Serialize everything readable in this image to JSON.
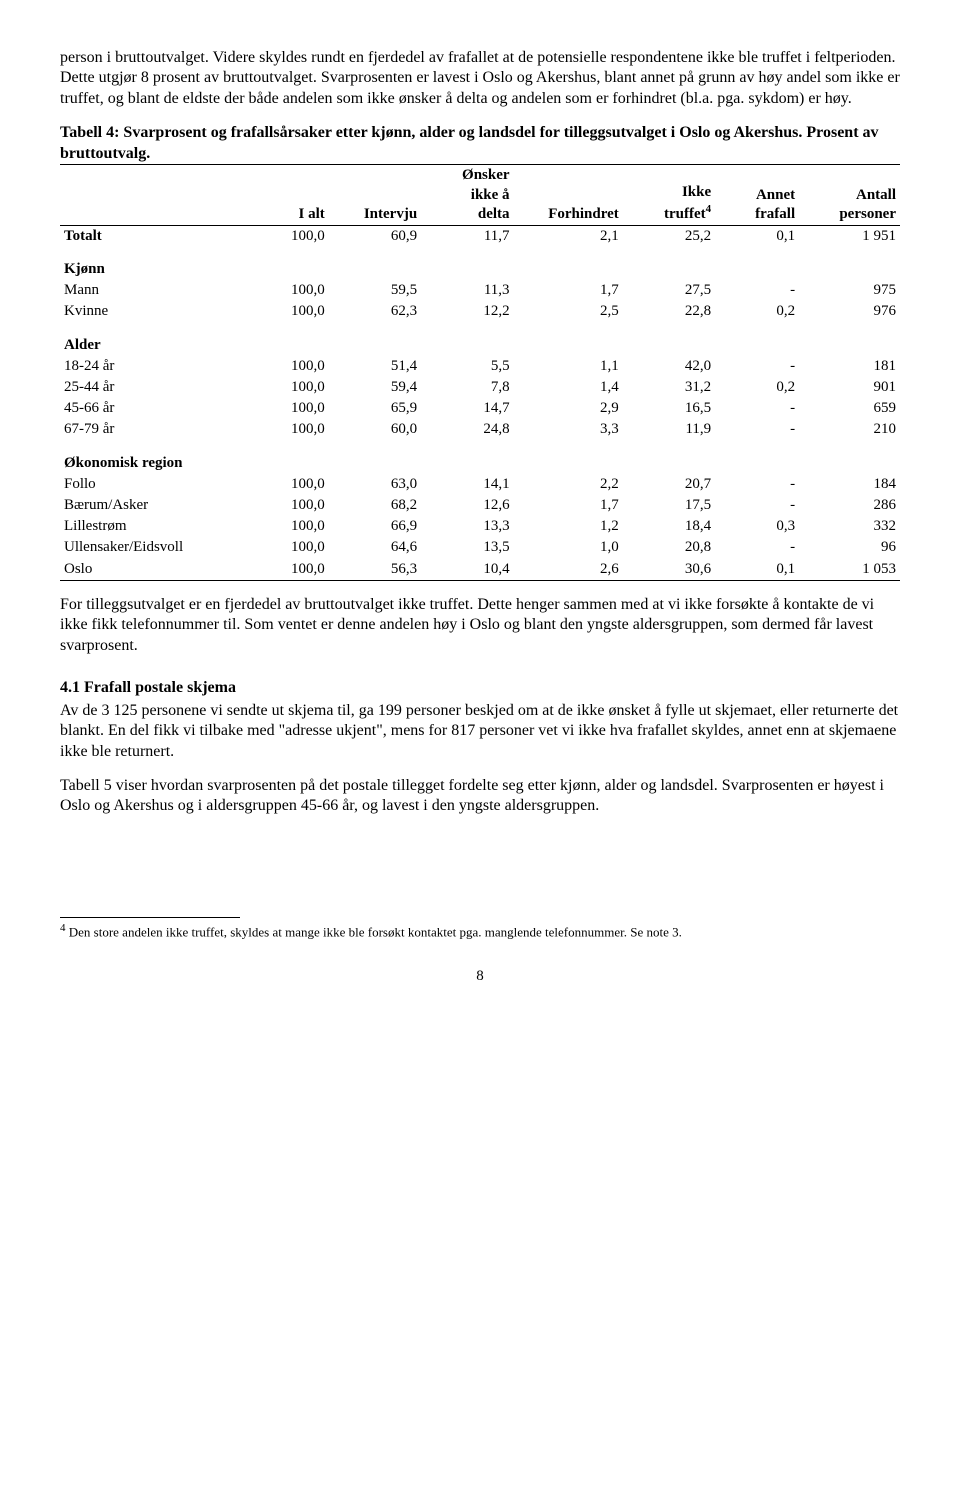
{
  "para1": "person i bruttoutvalget. Videre skyldes rundt en fjerdedel av frafallet at de potensielle respondentene ikke ble truffet i feltperioden. Dette utgjør 8 prosent av bruttoutvalget. Svarprosenten er lavest i Oslo og Akershus, blant annet på grunn av høy andel som ikke er truffet, og blant de eldste der både andelen som ikke ønsker å delta og andelen som er forhindret (bl.a. pga. sykdom) er høy.",
  "table4": {
    "title": "Tabell 4: Svarprosent og frafallsårsaker etter kjønn, alder og landsdel for tilleggsutvalget i Oslo og Akershus. Prosent av bruttoutvalg.",
    "headers": [
      "",
      "I alt",
      "Intervju",
      "Ønsker ikke å delta",
      "Forhindret",
      "Ikke truffet",
      "Annet frafall",
      "Antall personer"
    ],
    "footnote_marker": "4",
    "groups": [
      {
        "rows": [
          [
            "Totalt",
            "100,0",
            "60,9",
            "11,7",
            "2,1",
            "25,2",
            "0,1",
            "1 951"
          ]
        ]
      },
      {
        "label": "Kjønn",
        "rows": [
          [
            "Mann",
            "100,0",
            "59,5",
            "11,3",
            "1,7",
            "27,5",
            "-",
            "975"
          ],
          [
            "Kvinne",
            "100,0",
            "62,3",
            "12,2",
            "2,5",
            "22,8",
            "0,2",
            "976"
          ]
        ]
      },
      {
        "label": "Alder",
        "rows": [
          [
            "18-24 år",
            "100,0",
            "51,4",
            "5,5",
            "1,1",
            "42,0",
            "-",
            "181"
          ],
          [
            "25-44 år",
            "100,0",
            "59,4",
            "7,8",
            "1,4",
            "31,2",
            "0,2",
            "901"
          ],
          [
            "45-66 år",
            "100,0",
            "65,9",
            "14,7",
            "2,9",
            "16,5",
            "-",
            "659"
          ],
          [
            "67-79 år",
            "100,0",
            "60,0",
            "24,8",
            "3,3",
            "11,9",
            "-",
            "210"
          ]
        ]
      },
      {
        "label": "Økonomisk region",
        "rows": [
          [
            "Follo",
            "100,0",
            "63,0",
            "14,1",
            "2,2",
            "20,7",
            "-",
            "184"
          ],
          [
            "Bærum/Asker",
            "100,0",
            "68,2",
            "12,6",
            "1,7",
            "17,5",
            "-",
            "286"
          ],
          [
            "Lillestrøm",
            "100,0",
            "66,9",
            "13,3",
            "1,2",
            "18,4",
            "0,3",
            "332"
          ],
          [
            "Ullensaker/Eidsvoll",
            "100,0",
            "64,6",
            "13,5",
            "1,0",
            "20,8",
            "-",
            "96"
          ],
          [
            "Oslo",
            "100,0",
            "56,3",
            "10,4",
            "2,6",
            "30,6",
            "0,1",
            "1 053"
          ]
        ]
      }
    ]
  },
  "para2": "For tilleggsutvalget er en fjerdedel av bruttoutvalget ikke truffet. Dette henger sammen med at vi ikke forsøkte å kontakte de vi ikke fikk telefonnummer til. Som ventet er denne andelen høy i Oslo og blant den yngste aldersgruppen, som dermed får lavest svarprosent.",
  "section41": {
    "heading": "4.1   Frafall postale skjema",
    "para1": "Av de 3 125 personene vi sendte ut skjema til, ga 199 personer beskjed om at de ikke ønsket å fylle ut skjemaet, eller returnerte det blankt. En del fikk vi tilbake med \"adresse ukjent\", mens for 817 personer vet vi ikke hva frafallet skyldes, annet enn at skjemaene ikke ble returnert.",
    "para2": "Tabell 5 viser hvordan svarprosenten på det postale tillegget fordelte seg etter kjønn, alder og landsdel. Svarprosenten er høyest i Oslo og Akershus og i aldersgruppen 45-66 år, og lavest i den yngste aldersgruppen."
  },
  "footnote": {
    "marker": "4",
    "text": " Den store andelen ikke truffet, skyldes at mange ikke ble forsøkt kontaktet pga. manglende telefonnummer. Se note 3."
  },
  "page_number": "8"
}
